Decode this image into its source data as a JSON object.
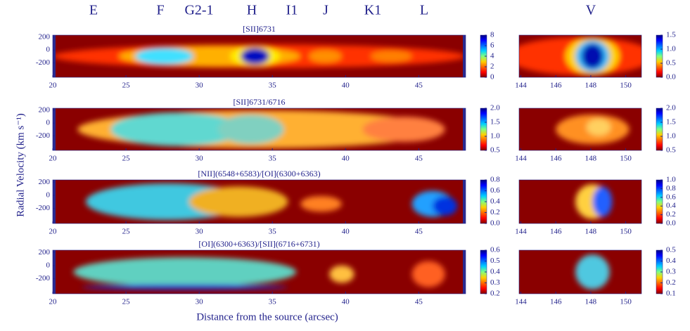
{
  "figure": {
    "knots": [
      "E",
      "F",
      "G2-1",
      "H",
      "I1",
      "J",
      "K1",
      "L",
      "V"
    ],
    "xlabel": "Distance from the source (arcsec)",
    "ylabel": "Radial Velocity (km s⁻¹)"
  },
  "chart_data": [
    {
      "type": "heatmap",
      "title": "[SII]6731",
      "xlim": [
        20,
        48.2
      ],
      "xticks": [
        20,
        25,
        30,
        35,
        40,
        45
      ],
      "ylim": [
        -430,
        235
      ],
      "yticks": [
        200,
        0,
        -200
      ],
      "clim": [
        0,
        8
      ],
      "cticks": [
        0,
        2,
        4,
        6,
        8
      ]
    },
    {
      "type": "heatmap",
      "xlim": [
        143.9,
        150.9
      ],
      "xticks": [
        144,
        146,
        148,
        150
      ],
      "ylim": [
        -430,
        235
      ],
      "yticks": [],
      "clim": [
        0,
        1.5
      ],
      "cticks": [
        {
          "value": 0,
          "label": "0.0"
        },
        0.5,
        {
          "value": 1,
          "label": "1.0"
        },
        1.5
      ]
    },
    {
      "type": "heatmap",
      "title": "[SII]6731/6716",
      "xlim": [
        20,
        48.2
      ],
      "xticks": [
        20,
        25,
        30,
        35,
        40,
        45
      ],
      "ylim": [
        -430,
        235
      ],
      "yticks": [
        200,
        0,
        -200
      ],
      "clim": [
        0.5,
        2
      ],
      "cticks": [
        0.5,
        {
          "value": 1,
          "label": "1.0"
        },
        1.5,
        {
          "value": 2,
          "label": "2.0"
        }
      ]
    },
    {
      "type": "heatmap",
      "xlim": [
        143.9,
        150.9
      ],
      "xticks": [
        144,
        146,
        148,
        150
      ],
      "ylim": [
        -430,
        235
      ],
      "yticks": [],
      "clim": [
        0.5,
        2
      ],
      "cticks": [
        0.5,
        {
          "value": 1,
          "label": "1.0"
        },
        1.5,
        {
          "value": 2,
          "label": "2.0"
        }
      ]
    },
    {
      "type": "heatmap",
      "title": "[NII](6548+6583)/[OI](6300+6363)",
      "xlim": [
        20,
        48.2
      ],
      "xticks": [
        20,
        25,
        30,
        35,
        40,
        45
      ],
      "ylim": [
        -430,
        235
      ],
      "yticks": [
        200,
        0,
        -200
      ],
      "clim": [
        0,
        0.8
      ],
      "cticks": [
        {
          "value": 0,
          "label": "0.0"
        },
        0.2,
        0.4,
        0.6,
        0.8
      ]
    },
    {
      "type": "heatmap",
      "xlim": [
        143.9,
        150.9
      ],
      "xticks": [
        144,
        146,
        148,
        150
      ],
      "ylim": [
        -430,
        235
      ],
      "yticks": [],
      "clim": [
        0,
        1
      ],
      "cticks": [
        {
          "value": 0,
          "label": "0.0"
        },
        0.2,
        0.4,
        0.6,
        0.8,
        {
          "value": 1,
          "label": "1.0"
        }
      ]
    },
    {
      "type": "heatmap",
      "title": "[OI](6300+6363)/[SII](6716+6731)",
      "xlim": [
        20,
        48.2
      ],
      "xticks": [
        20,
        25,
        30,
        35,
        40,
        45
      ],
      "ylim": [
        -430,
        235
      ],
      "yticks": [
        200,
        0,
        -200
      ],
      "clim": [
        0.2,
        0.6
      ],
      "cticks": [
        0.2,
        0.3,
        0.4,
        0.5,
        0.6
      ]
    },
    {
      "type": "heatmap",
      "xlim": [
        143.9,
        150.9
      ],
      "xticks": [
        144,
        146,
        148,
        150
      ],
      "ylim": [
        -430,
        235
      ],
      "yticks": [],
      "clim": [
        0.1,
        0.5
      ],
      "cticks": [
        0.1,
        0.2,
        0.3,
        0.4,
        0.5
      ]
    }
  ]
}
